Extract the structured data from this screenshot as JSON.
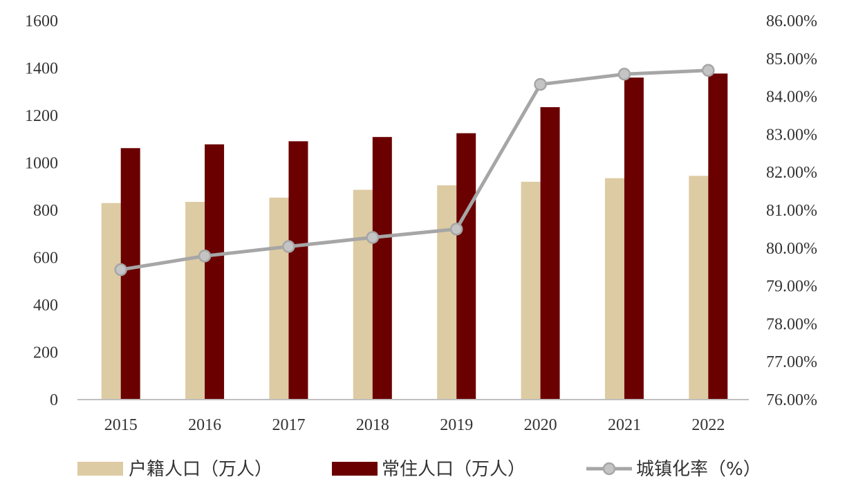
{
  "chart_data": {
    "type": "bar",
    "categories": [
      "2015",
      "2016",
      "2017",
      "2018",
      "2019",
      "2020",
      "2021",
      "2022"
    ],
    "series": [
      {
        "name": "户籍人口（万人）",
        "type": "bar",
        "axis": "left",
        "color": "#ddcba3",
        "values": [
          830,
          835,
          853,
          886,
          905,
          920,
          935,
          945
        ]
      },
      {
        "name": "常住人口（万人）",
        "type": "bar",
        "axis": "left",
        "color": "#6b0000",
        "values": [
          1062,
          1078,
          1091,
          1109,
          1125,
          1235,
          1360,
          1377
        ]
      },
      {
        "name": "城镇化率（%）",
        "type": "line",
        "axis": "right",
        "color": "#a6a6a6",
        "values": [
          79.43,
          79.79,
          80.04,
          80.28,
          80.5,
          84.32,
          84.59,
          84.69
        ]
      }
    ],
    "left_axis": {
      "range": [
        0,
        1600
      ],
      "ticks": [
        "0",
        "200",
        "400",
        "600",
        "800",
        "1000",
        "1200",
        "1400",
        "1600"
      ]
    },
    "right_axis": {
      "range": [
        76,
        86
      ],
      "ticks": [
        "76.00%",
        "77.00%",
        "78.00%",
        "79.00%",
        "80.00%",
        "81.00%",
        "82.00%",
        "83.00%",
        "84.00%",
        "85.00%",
        "86.00%"
      ]
    },
    "legend_position": "bottom",
    "grid": false
  }
}
